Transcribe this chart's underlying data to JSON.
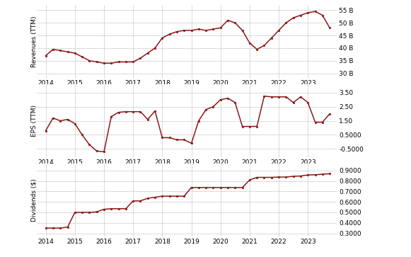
{
  "revenue": {
    "x": [
      2014.0,
      2014.25,
      2014.5,
      2014.75,
      2015.0,
      2015.25,
      2015.5,
      2015.75,
      2016.0,
      2016.25,
      2016.5,
      2016.75,
      2017.0,
      2017.25,
      2017.5,
      2017.75,
      2018.0,
      2018.25,
      2018.5,
      2018.75,
      2019.0,
      2019.25,
      2019.5,
      2019.75,
      2020.0,
      2020.25,
      2020.5,
      2020.75,
      2021.0,
      2021.25,
      2021.5,
      2021.75,
      2022.0,
      2022.25,
      2022.5,
      2022.75,
      2023.0,
      2023.25,
      2023.5,
      2023.75
    ],
    "y": [
      37,
      39.5,
      39,
      38.5,
      38,
      36.5,
      35,
      34.5,
      34,
      34,
      34.5,
      34.5,
      34.5,
      36,
      38,
      40,
      44,
      45.5,
      46.5,
      47,
      47,
      47.5,
      47,
      47.5,
      48,
      51,
      50,
      47,
      42,
      39.5,
      41,
      44,
      47,
      50,
      52,
      53,
      54,
      54.5,
      53,
      48
    ],
    "ylabel": "Revenues (TTM)",
    "yticks": [
      30,
      35,
      40,
      45,
      50,
      55
    ],
    "ylabels": [
      "30 B",
      "35 B",
      "40 B",
      "45 B",
      "50 B",
      "55 B"
    ],
    "ylim": [
      28,
      57
    ]
  },
  "eps": {
    "x": [
      2014.0,
      2014.25,
      2014.5,
      2014.75,
      2015.0,
      2015.25,
      2015.5,
      2015.75,
      2016.0,
      2016.25,
      2016.5,
      2016.75,
      2017.0,
      2017.25,
      2017.5,
      2017.75,
      2018.0,
      2018.25,
      2018.5,
      2018.75,
      2019.0,
      2019.25,
      2019.5,
      2019.75,
      2020.0,
      2020.25,
      2020.5,
      2020.75,
      2021.0,
      2021.25,
      2021.5,
      2021.75,
      2022.0,
      2022.25,
      2022.5,
      2022.75,
      2023.0,
      2023.25,
      2023.5,
      2023.75
    ],
    "y": [
      0.8,
      1.7,
      1.5,
      1.6,
      1.3,
      0.5,
      -0.2,
      -0.65,
      -0.7,
      1.8,
      2.1,
      2.15,
      2.15,
      2.15,
      1.6,
      2.2,
      0.3,
      0.3,
      0.15,
      0.15,
      -0.1,
      1.5,
      2.3,
      2.5,
      3.0,
      3.1,
      2.8,
      1.1,
      1.1,
      1.1,
      3.25,
      3.2,
      3.2,
      3.2,
      2.8,
      3.2,
      2.8,
      1.4,
      1.4,
      2.0
    ],
    "ylabel": "EPS (TTM)",
    "yticks": [
      -0.5,
      0.5,
      1.5,
      2.5,
      3.5
    ],
    "ylabels": [
      "-0.5000",
      "0.5000",
      "1.50",
      "2.50",
      "3.50"
    ],
    "ylim": [
      -1.1,
      4.1
    ]
  },
  "dividends": {
    "x": [
      2014.0,
      2014.25,
      2014.5,
      2014.75,
      2015.0,
      2015.25,
      2015.5,
      2015.75,
      2016.0,
      2016.25,
      2016.5,
      2016.75,
      2017.0,
      2017.25,
      2017.5,
      2017.75,
      2018.0,
      2018.25,
      2018.5,
      2018.75,
      2019.0,
      2019.25,
      2019.5,
      2019.75,
      2020.0,
      2020.25,
      2020.5,
      2020.75,
      2021.0,
      2021.25,
      2021.5,
      2021.75,
      2022.0,
      2022.25,
      2022.5,
      2022.75,
      2023.0,
      2023.25,
      2023.5,
      2023.75
    ],
    "y": [
      0.35,
      0.35,
      0.35,
      0.36,
      0.5,
      0.5,
      0.5,
      0.505,
      0.53,
      0.535,
      0.535,
      0.535,
      0.61,
      0.61,
      0.635,
      0.645,
      0.655,
      0.655,
      0.655,
      0.655,
      0.738,
      0.738,
      0.738,
      0.738,
      0.738,
      0.738,
      0.738,
      0.738,
      0.81,
      0.835,
      0.835,
      0.835,
      0.838,
      0.838,
      0.845,
      0.848,
      0.858,
      0.86,
      0.865,
      0.87
    ],
    "ylabel": "Dividends ($)",
    "yticks": [
      0.3,
      0.4,
      0.5,
      0.6,
      0.7,
      0.8,
      0.9
    ],
    "ylabels": [
      "0.3000",
      "0.4000",
      "0.5000",
      "0.6000",
      "0.7000",
      "0.8000",
      "0.9000"
    ],
    "ylim": [
      0.27,
      0.97
    ]
  },
  "line_color": "#8B1A1A",
  "marker": "o",
  "markersize": 2.0,
  "linewidth": 1.1,
  "bg_color": "#FFFFFF",
  "grid_color": "#CCCCCC",
  "tick_fontsize": 6.5,
  "ylabel_fontsize": 6.5,
  "xtick_fontsize": 7,
  "xticks": [
    2014,
    2015,
    2016,
    2017,
    2018,
    2019,
    2020,
    2021,
    2022,
    2023
  ],
  "xlim": [
    2013.7,
    2024.0
  ]
}
